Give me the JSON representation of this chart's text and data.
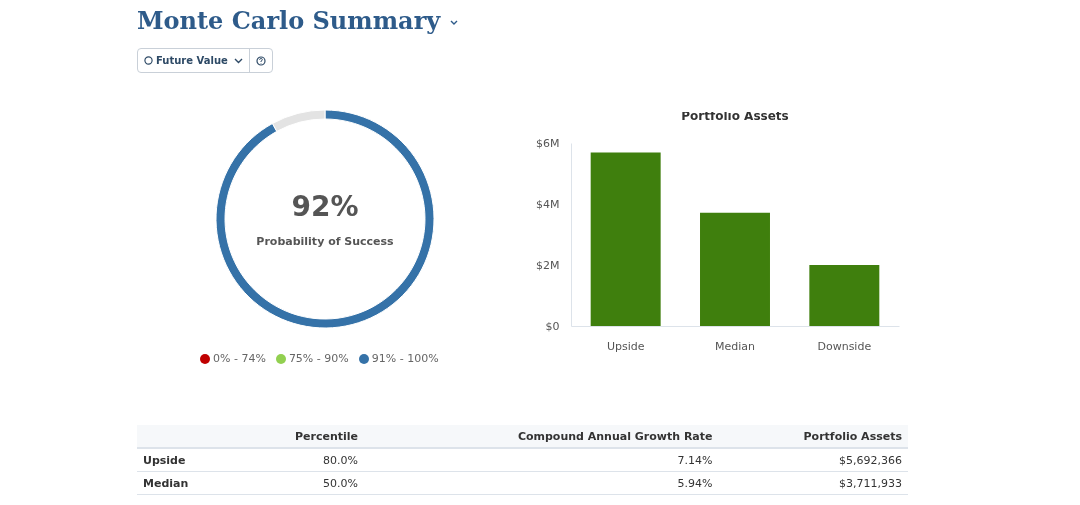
{
  "chart_data": [
    {
      "type": "donut",
      "title": "Monte Carlo Summary",
      "categories": [
        null,
        null
      ],
      "values": [
        92,
        8
      ],
      "colors": [
        "#3572a8",
        "#e3e3e3"
      ],
      "annotations": [
        "Future Value",
        "92%",
        "Probability of Success",
        "0% - 74%",
        "75% - 90%",
        "91% - 100%"
      ]
    },
    {
      "type": "bar",
      "title": "Portfolio Assets",
      "categories": [
        "Upside",
        "Median",
        "Downside"
      ],
      "values": [
        5.69,
        3.71,
        2.0
      ],
      "color": "#3f7f0d",
      "ylim": [
        0,
        6
      ],
      "yticks": [
        {
          "value": 0,
          "label": "$0"
        },
        {
          "value": 2,
          "label": "$2M"
        },
        {
          "value": 4,
          "label": "$4M"
        },
        {
          "value": 6,
          "label": "$6M"
        }
      ],
      "grid": false
    },
    {
      "type": "other",
      "annotations": [
        "Percentile",
        "Compound Annual Growth Rate",
        "Portfolio Assets",
        "Upside",
        "80.0%",
        "7.14%",
        "$5,692,366",
        "Median",
        "50.0%",
        "5.94%",
        "$3,711,933"
      ]
    }
  ]
}
